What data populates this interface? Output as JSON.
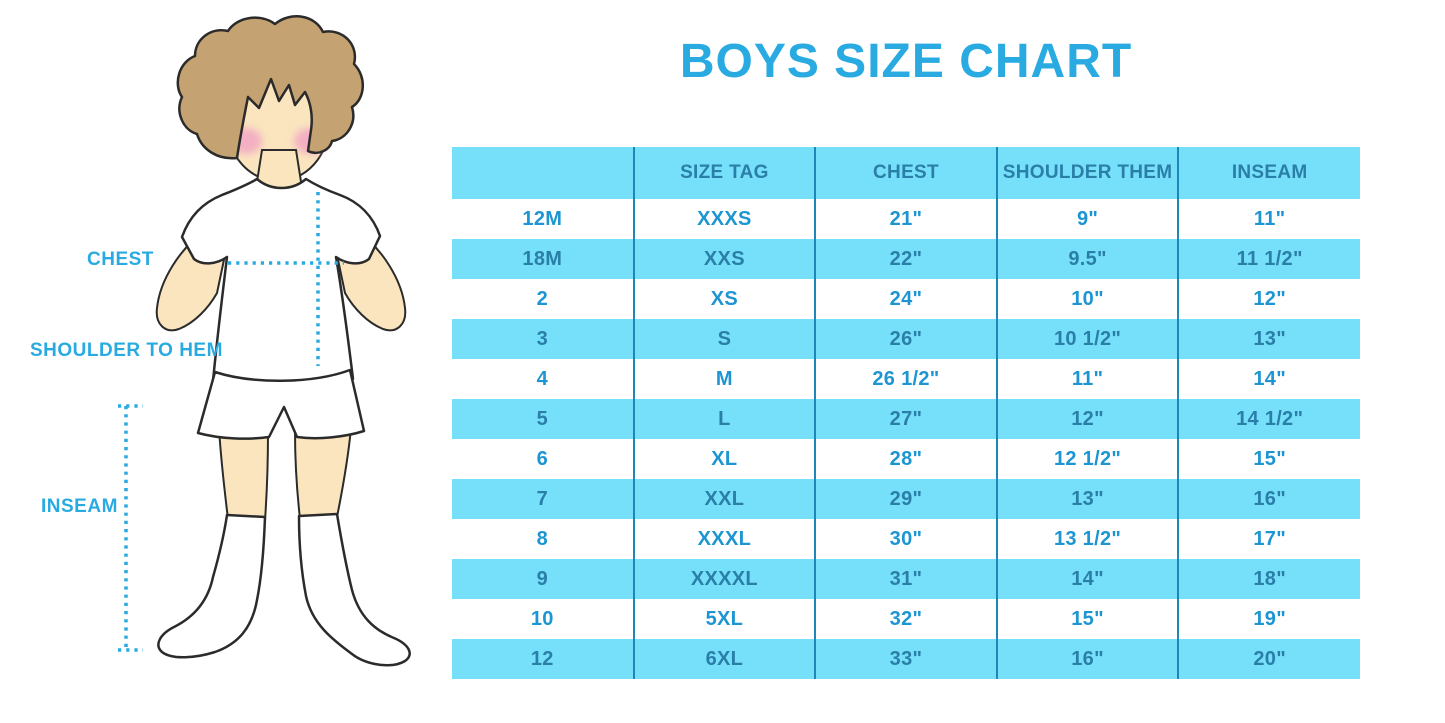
{
  "title": "BOYS SIZE CHART",
  "colors": {
    "accent": "#29ABE2",
    "stripe": "#76E0FA",
    "cell_text": "#1C95D2",
    "header_text": "#2A7FA9",
    "divider": "#1D87B8"
  },
  "illustration": {
    "skin": "#FAE5BE",
    "hair": "#C5A271",
    "blush": "#F3AFC3",
    "labels": {
      "chest": "CHEST",
      "shoulder_to_hem": "SHOULDER TO HEM",
      "inseam": "INSEAM"
    }
  },
  "chart_data": {
    "type": "table",
    "title": "BOYS SIZE CHART",
    "columns": [
      "",
      "SIZE TAG",
      "CHEST",
      "SHOULDER THEM",
      "INSEAM"
    ],
    "rows": [
      [
        "12M",
        "XXXS",
        "21\"",
        "9\"",
        "11\""
      ],
      [
        "18M",
        "XXS",
        "22\"",
        "9.5\"",
        "11 1/2\""
      ],
      [
        "2",
        "XS",
        "24\"",
        "10\"",
        "12\""
      ],
      [
        "3",
        "S",
        "26\"",
        "10 1/2\"",
        "13\""
      ],
      [
        "4",
        "M",
        "26 1/2\"",
        "11\"",
        "14\""
      ],
      [
        "5",
        "L",
        "27\"",
        "12\"",
        "14 1/2\""
      ],
      [
        "6",
        "XL",
        "28\"",
        "12 1/2\"",
        "15\""
      ],
      [
        "7",
        "XXL",
        "29\"",
        "13\"",
        "16\""
      ],
      [
        "8",
        "XXXL",
        "30\"",
        "13 1/2\"",
        "17\""
      ],
      [
        "9",
        "XXXXL",
        "31\"",
        "14\"",
        "18\""
      ],
      [
        "10",
        "5XL",
        "32\"",
        "15\"",
        "19\""
      ],
      [
        "12",
        "6XL",
        "33\"",
        "16\"",
        "20\""
      ]
    ]
  }
}
